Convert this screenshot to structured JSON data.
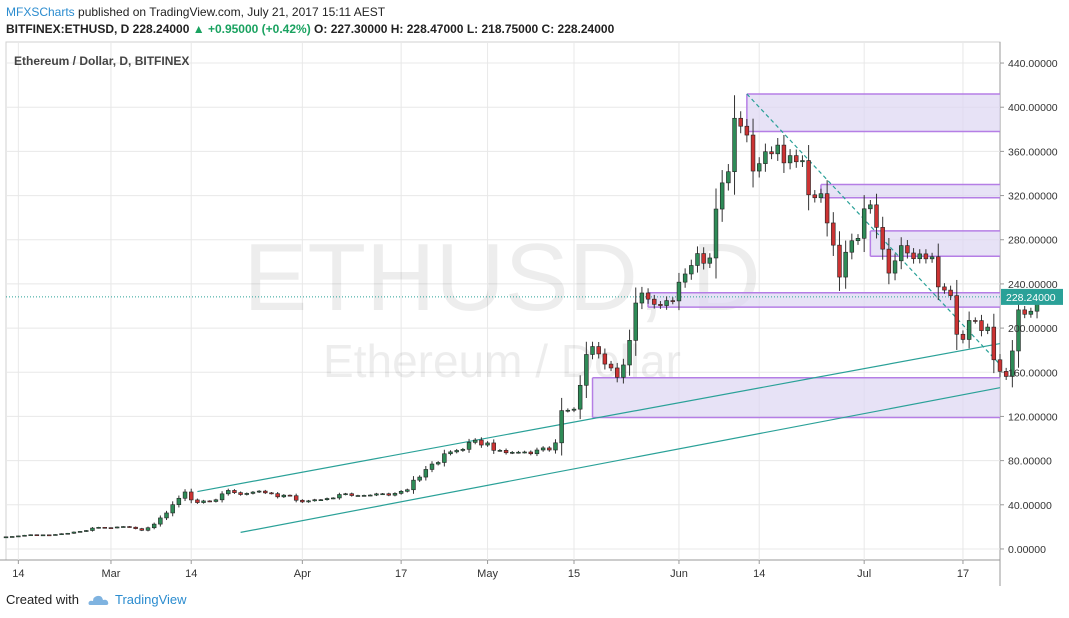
{
  "header": {
    "author": "MFXSCharts",
    "published": " published on TradingView.com, July 21, 2017 15:11 AEST",
    "symbol_line_prefix": "BITFINEX:ETHUSD, D  228.24000 ",
    "change": "▲ +0.95000 (+0.42%)",
    "ohlc": " O: 227.30000 H: 228.47000 L: 218.75000 C: 228.24000"
  },
  "footer": {
    "created_with": "Created with",
    "brand": "TradingView"
  },
  "chart_data": {
    "type": "candlestick",
    "title": "Ethereum / Dollar, D, BITFINEX",
    "watermark_symbol": "ETHUSD, D",
    "watermark_name": "Ethereum / Dollar",
    "last_price": 228.24,
    "last_price_label": "228.24000",
    "ylim": [
      -10,
      450
    ],
    "y_ticks": [
      0,
      40,
      80,
      120,
      160,
      200,
      240,
      280,
      320,
      360,
      400,
      440
    ],
    "y_tick_labels": [
      "0.00000",
      "40.00000",
      "80.00000",
      "120.00000",
      "160.00000",
      "200.00000",
      "240.00000",
      "280.00000",
      "320.00000",
      "360.00000",
      "400.00000",
      "440.00000"
    ],
    "x_range": [
      "2017-02-12",
      "2017-07-23"
    ],
    "x_ticks": [
      {
        "date": "2017-02-14",
        "label": "14"
      },
      {
        "date": "2017-03-01",
        "label": "Mar"
      },
      {
        "date": "2017-03-14",
        "label": "14"
      },
      {
        "date": "2017-04-01",
        "label": "Apr"
      },
      {
        "date": "2017-04-17",
        "label": "17"
      },
      {
        "date": "2017-05-01",
        "label": "May"
      },
      {
        "date": "2017-05-15",
        "label": "15"
      },
      {
        "date": "2017-06-01",
        "label": "Jun"
      },
      {
        "date": "2017-06-14",
        "label": "14"
      },
      {
        "date": "2017-07-01",
        "label": "Jul"
      },
      {
        "date": "2017-07-17",
        "label": "17"
      }
    ],
    "start_date": "2017-02-12",
    "closes": [
      11.0,
      11.3,
      11.8,
      12.4,
      12.9,
      12.6,
      12.8,
      12.7,
      13.1,
      13.8,
      14.2,
      15.3,
      15.9,
      16.7,
      18.9,
      19.6,
      19.3,
      19.1,
      19.9,
      20.3,
      19.7,
      18.4,
      16.9,
      19.2,
      22.5,
      28.1,
      32.6,
      40.1,
      45.9,
      51.6,
      44.4,
      42.0,
      43.5,
      43.0,
      44.5,
      49.9,
      53.0,
      51.0,
      49.3,
      50.3,
      51.5,
      52.4,
      50.8,
      50.1,
      47.2,
      48.7,
      48.2,
      44.1,
      42.6,
      43.6,
      44.6,
      44.6,
      45.7,
      46.2,
      49.3,
      50.0,
      48.4,
      48.4,
      48.5,
      48.8,
      49.9,
      50.0,
      48.7,
      50.3,
      52.2,
      53.6,
      62.3,
      65.1,
      72.0,
      76.9,
      78.3,
      86.2,
      87.9,
      89.2,
      90.2,
      96.5,
      98.6,
      94.1,
      96.0,
      89.3,
      89.3,
      87.1,
      87.5,
      87.6,
      87.8,
      86.2,
      89.6,
      91.5,
      89.6,
      96.1,
      125.3,
      125.6,
      126.6,
      148.2,
      176.1,
      183.3,
      176.6,
      167.4,
      163.9,
      155.4,
      166.6,
      188.9,
      222.7,
      231.8,
      226.2,
      221.5,
      220.4,
      224.9,
      224.6,
      241.6,
      249.0,
      256.7,
      267.5,
      258.7,
      263.5,
      307.8,
      331.5,
      341.6,
      390.0,
      382.8,
      374.8,
      342.2,
      348.9,
      359.7,
      357.8,
      365.7,
      349.6,
      356.2,
      350.6,
      351.7,
      320.7,
      318.0,
      321.7,
      295.2,
      275.1,
      246.2,
      268.7,
      279.1,
      281.3,
      308.0,
      311.6,
      291.2,
      271.5,
      249.8,
      260.9,
      274.7,
      268.0,
      262.8,
      267.2,
      262.7,
      264.6,
      237.3,
      234.4,
      229.4,
      194.4,
      189.7,
      206.9,
      206.8,
      197.7,
      200.9,
      171.3,
      160.8,
      156.2,
      179.3,
      216.5,
      212.5,
      215.3,
      227.3,
      228.24
    ],
    "trendlines": [
      {
        "p1": [
          "2017-03-15",
          52
        ],
        "p2": [
          "2017-07-23",
          186
        ]
      },
      {
        "p1": [
          "2017-03-22",
          15
        ],
        "p2": [
          "2017-07-23",
          146
        ]
      },
      {
        "p1": [
          "2017-06-12",
          412
        ],
        "p2": [
          "2017-07-23",
          167
        ]
      }
    ],
    "zones": [
      {
        "from": "2017-06-12",
        "low": 378,
        "high": 412
      },
      {
        "from": "2017-06-24",
        "low": 318,
        "high": 330
      },
      {
        "from": "2017-07-02",
        "low": 265,
        "high": 288
      },
      {
        "from": "2017-05-27",
        "low": 219,
        "high": 232
      },
      {
        "from": "2017-05-18",
        "low": 119,
        "high": 155
      }
    ]
  },
  "colors": {
    "up": "#2e8b57",
    "down": "#cc3333",
    "zone_fill": "#ddd5f2",
    "zone_edge": "#b57ee5",
    "trend": "#2aa198",
    "price_line": "#2aa198",
    "axis_text": "#333333"
  }
}
